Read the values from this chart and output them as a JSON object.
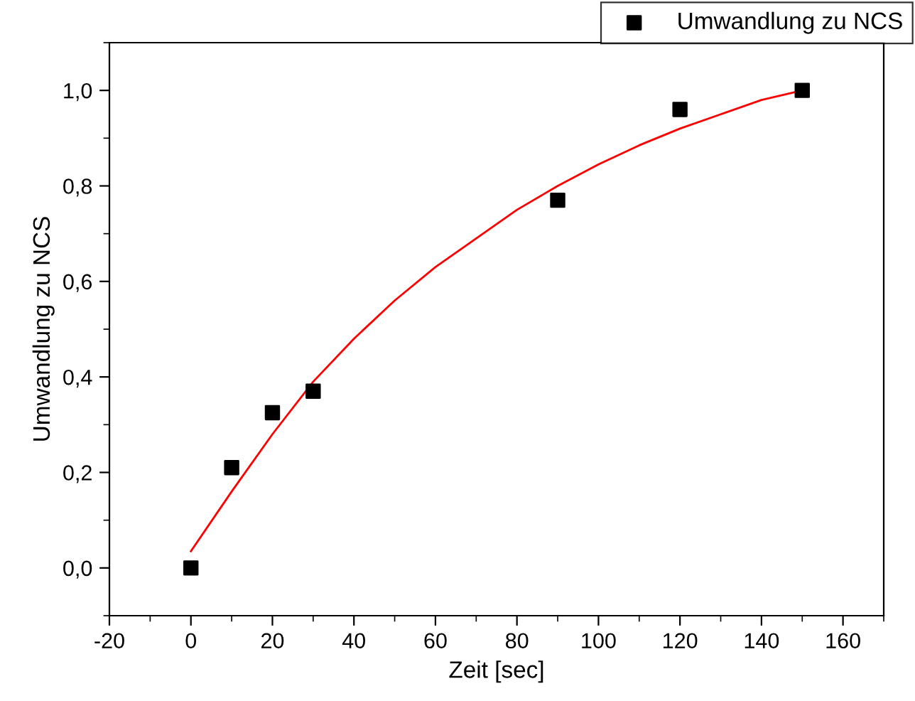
{
  "chart_data": {
    "type": "scatter",
    "xlabel": "Zeit [sec]",
    "ylabel": "Umwandlung zu NCS",
    "xlim": [
      -20,
      170
    ],
    "ylim": [
      -0.1,
      1.1
    ],
    "xticks": [
      -20,
      0,
      20,
      40,
      60,
      80,
      100,
      120,
      140,
      160
    ],
    "yticks": [
      {
        "value": 0,
        "label": "0,0"
      },
      {
        "value": 0.2,
        "label": "0,2"
      },
      {
        "value": 0.4,
        "label": "0,4"
      },
      {
        "value": 0.6,
        "label": "0,6"
      },
      {
        "value": 0.8,
        "label": "0,8"
      },
      {
        "value": 1.0,
        "label": "1,0"
      }
    ],
    "grid": false,
    "legend": "top right",
    "series": [
      {
        "name": "Umwandlung zu NCS",
        "marker": "square",
        "color": "#000000",
        "x": [
          0,
          10,
          20,
          30,
          90,
          120,
          150
        ],
        "values": [
          0,
          0.21,
          0.325,
          0.37,
          0.77,
          0.96,
          1.0
        ]
      },
      {
        "type": "line",
        "color": "#ff0000",
        "x": [
          0,
          10,
          20,
          30,
          40,
          50,
          60,
          70,
          80,
          90,
          100,
          110,
          120,
          130,
          140,
          150
        ],
        "values": [
          0.035,
          0.16,
          0.28,
          0.39,
          0.48,
          0.56,
          0.63,
          0.69,
          0.75,
          0.8,
          0.845,
          0.885,
          0.92,
          0.95,
          0.98,
          1.0
        ]
      }
    ]
  }
}
